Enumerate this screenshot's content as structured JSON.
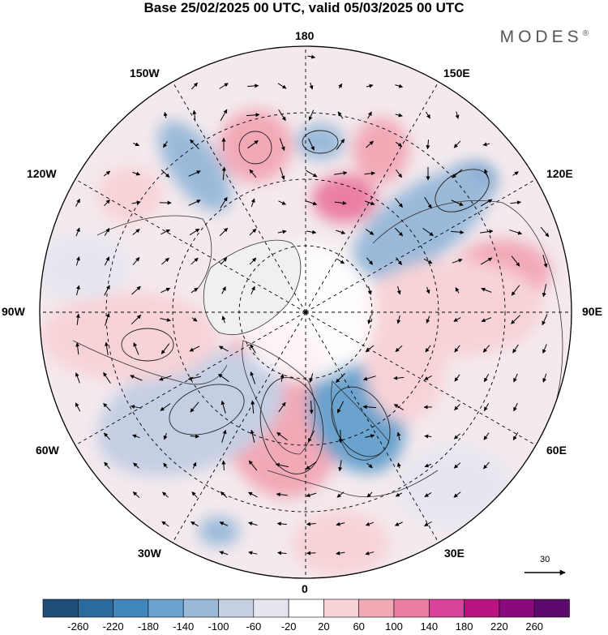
{
  "title": "Base 25/02/2025 00 UTC, valid 05/03/2025 00 UTC",
  "brand": {
    "name": "MODES",
    "mark": "®"
  },
  "longitude_labels": {
    "lon_180": "180",
    "lon_150e": "150E",
    "lon_120e": "120E",
    "lon_90e": "90E",
    "lon_60e": "60E",
    "lon_30e": "30E",
    "lon_0": "0",
    "lon_30w": "30W",
    "lon_60w": "60W",
    "lon_90w": "90W",
    "lon_120w": "120W",
    "lon_150w": "150W"
  },
  "reference_vector": {
    "value": "30"
  },
  "colorbar": {
    "labels": [
      "-260",
      "-220",
      "-180",
      "-140",
      "-100",
      "-60",
      "-20",
      "20",
      "60",
      "100",
      "140",
      "180",
      "220",
      "260"
    ],
    "colors": [
      "#1f4e79",
      "#2b6a9c",
      "#3f86bd",
      "#6aa3cd",
      "#9ab9d9",
      "#c5cfe4",
      "#e6e6f0",
      "#ffffff",
      "#f7d3d7",
      "#f2a9b6",
      "#ea7fa2",
      "#d9449a",
      "#b7147f",
      "#880b7e",
      "#5c0a6e"
    ]
  },
  "colors": {
    "frame": "#000000",
    "land": "#ececec"
  }
}
